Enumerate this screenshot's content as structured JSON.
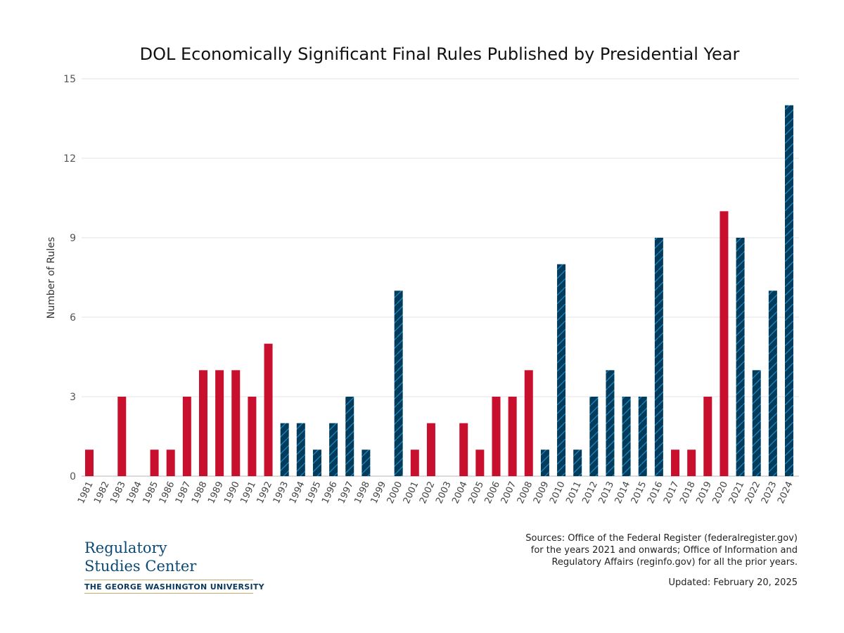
{
  "chart_data": {
    "type": "bar",
    "title": "DOL Economically Significant Final Rules Published by Presidential Year",
    "xlabel": "",
    "ylabel": "Number of Rules",
    "ylim": [
      0,
      15
    ],
    "yticks": [
      0,
      3,
      6,
      9,
      12,
      15
    ],
    "grid": true,
    "categories": [
      "1981",
      "1982",
      "1983",
      "1984",
      "1985",
      "1986",
      "1987",
      "1988",
      "1989",
      "1990",
      "1991",
      "1992",
      "1993",
      "1994",
      "1995",
      "1996",
      "1997",
      "1998",
      "1999",
      "2000",
      "2001",
      "2002",
      "2003",
      "2004",
      "2005",
      "2006",
      "2007",
      "2008",
      "2009",
      "2010",
      "2011",
      "2012",
      "2013",
      "2014",
      "2015",
      "2016",
      "2017",
      "2018",
      "2019",
      "2020",
      "2021",
      "2022",
      "2023",
      "2024"
    ],
    "values": [
      1,
      0,
      3,
      0,
      1,
      1,
      3,
      4,
      4,
      4,
      3,
      5,
      2,
      2,
      1,
      2,
      3,
      1,
      0,
      7,
      1,
      2,
      0,
      2,
      1,
      3,
      3,
      4,
      1,
      8,
      1,
      3,
      4,
      3,
      3,
      9,
      1,
      1,
      3,
      10,
      9,
      4,
      7,
      14
    ],
    "party": [
      "R",
      "R",
      "R",
      "R",
      "R",
      "R",
      "R",
      "R",
      "R",
      "R",
      "R",
      "R",
      "D",
      "D",
      "D",
      "D",
      "D",
      "D",
      "D",
      "D",
      "R",
      "R",
      "R",
      "R",
      "R",
      "R",
      "R",
      "R",
      "D",
      "D",
      "D",
      "D",
      "D",
      "D",
      "D",
      "D",
      "R",
      "R",
      "R",
      "R",
      "D",
      "D",
      "D",
      "D"
    ],
    "colors": {
      "R": "#c8102e",
      "D": "#033c5a",
      "D_hatch": "#1a86c8",
      "grid": "#e3e3e3"
    }
  },
  "footer": {
    "sources": [
      "Sources: Office of the Federal Register (federalregister.gov)",
      "for the years 2021 and onwards; Office of Information and",
      "Regulatory Affairs (reginfo.gov) for all the prior years."
    ],
    "updated": "Updated: February 20, 2025"
  },
  "logo": {
    "line1": "Regulatory",
    "line2": "Studies Center",
    "university": "THE GEORGE WASHINGTON UNIVERSITY"
  }
}
